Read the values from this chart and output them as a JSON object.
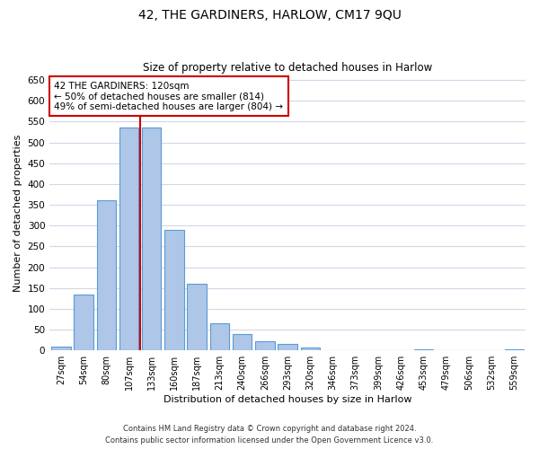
{
  "title": "42, THE GARDINERS, HARLOW, CM17 9QU",
  "subtitle": "Size of property relative to detached houses in Harlow",
  "xlabel": "Distribution of detached houses by size in Harlow",
  "ylabel": "Number of detached properties",
  "bar_labels": [
    "27sqm",
    "54sqm",
    "80sqm",
    "107sqm",
    "133sqm",
    "160sqm",
    "187sqm",
    "213sqm",
    "240sqm",
    "266sqm",
    "293sqm",
    "320sqm",
    "346sqm",
    "373sqm",
    "399sqm",
    "426sqm",
    "453sqm",
    "479sqm",
    "506sqm",
    "532sqm",
    "559sqm"
  ],
  "bar_values": [
    10,
    135,
    360,
    535,
    535,
    290,
    160,
    65,
    40,
    22,
    15,
    8,
    0,
    0,
    0,
    0,
    3,
    0,
    0,
    0,
    3
  ],
  "bar_color": "#aec6e8",
  "bar_edge_color": "#5b9bd5",
  "vline_pos": 3.5,
  "vline_color": "#cc0000",
  "annotation_title": "42 THE GARDINERS: 120sqm",
  "annotation_line1": "← 50% of detached houses are smaller (814)",
  "annotation_line2": "49% of semi-detached houses are larger (804) →",
  "annotation_box_color": "#ffffff",
  "annotation_box_edge": "#cc0000",
  "ylim": [
    0,
    660
  ],
  "yticks": [
    0,
    50,
    100,
    150,
    200,
    250,
    300,
    350,
    400,
    450,
    500,
    550,
    600,
    650
  ],
  "footnote1": "Contains HM Land Registry data © Crown copyright and database right 2024.",
  "footnote2": "Contains public sector information licensed under the Open Government Licence v3.0.",
  "bg_color": "#ffffff",
  "grid_color": "#d0d8e8"
}
